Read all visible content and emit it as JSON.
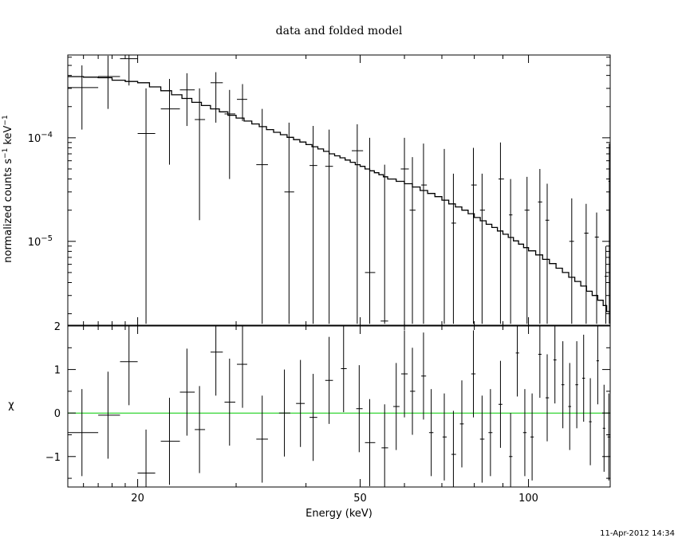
{
  "title": "data and folded model",
  "timestamp": "11-Apr-2012 14:34",
  "chart_data": [
    {
      "type": "scatter",
      "panel": "top",
      "title": "data and folded model",
      "xlabel": "",
      "ylabel_parts": [
        "normalized counts s",
        "−1",
        " keV",
        "−1"
      ],
      "xscale": "log",
      "yscale": "log",
      "xlim": [
        15,
        140
      ],
      "ylim": [
        1.55e-06,
        0.00063
      ],
      "y_ticklabels": [
        {
          "value": 0.0001,
          "base": "10",
          "exp": "−4"
        },
        {
          "value": 1e-05,
          "base": "10",
          "exp": "−5"
        }
      ],
      "data_points": [
        {
          "x": 15.9,
          "xerr": [
            15.0,
            17.0
          ],
          "y": 0.000305,
          "yerr": [
            0.00012,
            0.0005
          ]
        },
        {
          "x": 17.7,
          "xerr": [
            17.0,
            18.6
          ],
          "y": 0.00039,
          "yerr": [
            0.00019,
            0.00062
          ]
        },
        {
          "x": 19.3,
          "xerr": [
            18.6,
            20.0
          ],
          "y": 0.00058,
          "yerr": [
            0.00032,
            0.00063
          ]
        },
        {
          "x": 20.7,
          "xerr": [
            20.0,
            21.5
          ],
          "y": 0.00011,
          "yerr": [
            1.6e-06,
            0.0003
          ]
        },
        {
          "x": 22.8,
          "xerr": [
            22.0,
            23.8
          ],
          "y": 0.00019,
          "yerr": [
            5.5e-05,
            0.00037
          ]
        },
        {
          "x": 24.5,
          "xerr": [
            23.8,
            25.3
          ],
          "y": 0.00029,
          "yerr": [
            0.00013,
            0.00042
          ]
        },
        {
          "x": 25.8,
          "xerr": [
            25.3,
            26.4
          ],
          "y": 0.00015,
          "yerr": [
            1.6e-05,
            0.0003
          ]
        },
        {
          "x": 27.6,
          "xerr": [
            27.0,
            28.4
          ],
          "y": 0.00034,
          "yerr": [
            0.00014,
            0.00043
          ]
        },
        {
          "x": 29.2,
          "xerr": [
            28.6,
            29.9
          ],
          "y": 0.00017,
          "yerr": [
            4e-05,
            0.00029
          ]
        },
        {
          "x": 30.8,
          "xerr": [
            30.1,
            31.4
          ],
          "y": 0.000235,
          "yerr": [
            0.000145,
            0.00033
          ]
        },
        {
          "x": 33.4,
          "xerr": [
            32.6,
            34.2
          ],
          "y": 5.5e-05,
          "yerr": [
            1.6e-06,
            0.00019
          ]
        },
        {
          "x": 37.3,
          "xerr": [
            36.6,
            38.1
          ],
          "y": 3e-05,
          "yerr": [
            1.6e-06,
            0.00014
          ]
        },
        {
          "x": 41.2,
          "xerr": [
            40.6,
            41.9
          ],
          "y": 5.4e-05,
          "yerr": [
            1.6e-06,
            0.00013
          ]
        },
        {
          "x": 44.0,
          "xerr": [
            43.3,
            44.7
          ],
          "y": 5.3e-05,
          "yerr": [
            1.6e-06,
            0.00012
          ]
        },
        {
          "x": 49.4,
          "xerr": [
            48.3,
            50.6
          ],
          "y": 7.5e-05,
          "yerr": [
            1.6e-06,
            0.000135
          ]
        },
        {
          "x": 52.0,
          "xerr": [
            51.0,
            53.2
          ],
          "y": 5e-06,
          "yerr": [
            1.6e-06,
            0.0001
          ]
        },
        {
          "x": 55.3,
          "xerr": [
            54.4,
            56.1
          ],
          "y": 1.7e-06,
          "yerr": [
            1.6e-06,
            5.5e-05
          ]
        },
        {
          "x": 60.0,
          "xerr": [
            59.1,
            61.1
          ],
          "y": 5e-05,
          "yerr": [
            1.5e-06,
            0.0001
          ]
        },
        {
          "x": 62.0,
          "xerr": [
            61.3,
            62.8
          ],
          "y": 2e-05,
          "yerr": [
            1.6e-06,
            6.5e-05
          ]
        },
        {
          "x": 64.9,
          "xerr": [
            64.3,
            65.8
          ],
          "y": 3.5e-05,
          "yerr": [
            1.6e-06,
            8.8e-05
          ]
        },
        {
          "x": 70.7,
          "xerr": [
            70.2,
            71.8
          ],
          "y": 2.5e-05,
          "yerr": [
            1.6e-06,
            7.8e-05
          ]
        },
        {
          "x": 73.4,
          "xerr": [
            72.8,
            74.2
          ],
          "y": 1.5e-05,
          "yerr": [
            1.6e-06,
            4.5e-05
          ]
        },
        {
          "x": 79.7,
          "xerr": [
            79.0,
            80.8
          ],
          "y": 3.5e-05,
          "yerr": [
            1.6e-06,
            8e-05
          ]
        },
        {
          "x": 82.6,
          "xerr": [
            81.9,
            83.6
          ],
          "y": 2e-05,
          "yerr": [
            1.6e-06,
            4.5e-05
          ]
        },
        {
          "x": 89.1,
          "xerr": [
            88.4,
            90.4
          ],
          "y": 4e-05,
          "yerr": [
            1.6e-06,
            9e-05
          ]
        },
        {
          "x": 92.9,
          "xerr": [
            92.3,
            93.6
          ],
          "y": 1.8e-05,
          "yerr": [
            1.6e-06,
            4e-05
          ]
        },
        {
          "x": 99.4,
          "xerr": [
            98.4,
            100.4
          ],
          "y": 2e-05,
          "yerr": [
            1.6e-06,
            4.2e-05
          ]
        },
        {
          "x": 104.8,
          "xerr": [
            104.0,
            105.8
          ],
          "y": 2.4e-05,
          "yerr": [
            1.6e-06,
            5e-05
          ]
        },
        {
          "x": 108.0,
          "xerr": [
            107.2,
            108.9
          ],
          "y": 1.6e-05,
          "yerr": [
            1.6e-06,
            3.6e-05
          ]
        },
        {
          "x": 119.5,
          "xerr": [
            118.3,
            120.6
          ],
          "y": 1e-05,
          "yerr": [
            1.6e-06,
            2.6e-05
          ]
        },
        {
          "x": 126.8,
          "xerr": [
            125.8,
            128.0
          ],
          "y": 1.2e-05,
          "yerr": [
            1.6e-06,
            2.3e-05
          ]
        },
        {
          "x": 132.4,
          "xerr": [
            131.4,
            133.6
          ],
          "y": 1.1e-05,
          "yerr": [
            1.6e-06,
            1.9e-05
          ]
        },
        {
          "x": 137.5,
          "xerr": [
            136.8,
            138.9
          ],
          "y": 4.6e-06,
          "yerr": [
            1.6e-06,
            9e-06
          ]
        },
        {
          "x": 139.5,
          "xerr": [
            139.0,
            140.0
          ],
          "y": 3.8e-05,
          "yerr": [
            1.6e-06,
            8.8e-05
          ]
        }
      ],
      "model_steps": [
        [
          15.0,
          0.00039
        ],
        [
          16.0,
          0.000385
        ],
        [
          17.0,
          0.00038
        ],
        [
          18.0,
          0.00036
        ],
        [
          19.0,
          0.00035
        ],
        [
          20.0,
          0.00034
        ],
        [
          21.0,
          0.00031
        ],
        [
          22.0,
          0.000285
        ],
        [
          23.0,
          0.00026
        ],
        [
          24.0,
          0.00024
        ],
        [
          25.0,
          0.00022
        ],
        [
          26.0,
          0.000205
        ],
        [
          27.0,
          0.00019
        ],
        [
          28.0,
          0.000178
        ],
        [
          29.0,
          0.000165
        ],
        [
          30.0,
          0.000155
        ],
        [
          31.0,
          0.000145
        ],
        [
          32.0,
          0.000136
        ],
        [
          33.0,
          0.000128
        ],
        [
          34.0,
          0.00012
        ],
        [
          35.0,
          0.000113
        ],
        [
          36.0,
          0.000107
        ],
        [
          37.0,
          0.000101
        ],
        [
          38.0,
          9.6e-05
        ],
        [
          39.0,
          9.1e-05
        ],
        [
          40.0,
          8.6e-05
        ],
        [
          41.0,
          8.2e-05
        ],
        [
          42.0,
          7.8e-05
        ],
        [
          43.0,
          7.4e-05
        ],
        [
          44.0,
          7e-05
        ],
        [
          45.0,
          6.7e-05
        ],
        [
          46.0,
          6.4e-05
        ],
        [
          47.0,
          6.1e-05
        ],
        [
          48.0,
          5.8e-05
        ],
        [
          49.0,
          5.5e-05
        ],
        [
          50.0,
          5.3e-05
        ],
        [
          51.0,
          5e-05
        ],
        [
          52.0,
          4.8e-05
        ],
        [
          53.0,
          4.6e-05
        ],
        [
          54.0,
          4.4e-05
        ],
        [
          55.0,
          4.2e-05
        ],
        [
          56.0,
          4e-05
        ],
        [
          58.0,
          3.8e-05
        ],
        [
          60.0,
          3.6e-05
        ],
        [
          62.0,
          3.35e-05
        ],
        [
          64.0,
          3.1e-05
        ],
        [
          66.0,
          2.9e-05
        ],
        [
          68.0,
          2.7e-05
        ],
        [
          70.0,
          2.5e-05
        ],
        [
          72.0,
          2.3e-05
        ],
        [
          74.0,
          2.15e-05
        ],
        [
          76.0,
          2e-05
        ],
        [
          78.0,
          1.85e-05
        ],
        [
          80.0,
          1.7e-05
        ],
        [
          82.0,
          1.58e-05
        ],
        [
          84.0,
          1.46e-05
        ],
        [
          86.0,
          1.36e-05
        ],
        [
          88.0,
          1.26e-05
        ],
        [
          90.0,
          1.17e-05
        ],
        [
          92.0,
          1.09e-05
        ],
        [
          94.0,
          1.01e-05
        ],
        [
          96.0,
          9.4e-06
        ],
        [
          98.0,
          8.7e-06
        ],
        [
          100.0,
          8.1e-06
        ],
        [
          103.0,
          7.4e-06
        ],
        [
          106.0,
          6.7e-06
        ],
        [
          109.0,
          6.1e-06
        ],
        [
          112.0,
          5.5e-06
        ],
        [
          115.0,
          5e-06
        ],
        [
          118.0,
          4.5e-06
        ],
        [
          121.0,
          4.1e-06
        ],
        [
          124.0,
          3.7e-06
        ],
        [
          127.0,
          3.3e-06
        ],
        [
          130.0,
          3e-06
        ],
        [
          133.0,
          2.7e-06
        ],
        [
          136.0,
          2.4e-06
        ],
        [
          138.0,
          2.1e-06
        ],
        [
          140.0,
          1.9e-06
        ]
      ]
    },
    {
      "type": "scatter",
      "panel": "bottom",
      "xlabel": "Energy (keV)",
      "ylabel": "χ",
      "xscale": "log",
      "xlim": [
        15,
        140
      ],
      "ylim": [
        -1.7,
        2.0
      ],
      "x_ticks": [
        20,
        50,
        100
      ],
      "x_ticklabels": [
        "20",
        "50",
        "100"
      ],
      "y_ticks": [
        -1,
        0,
        1,
        2
      ],
      "y_ticklabels": [
        "−1",
        "0",
        "1",
        "2"
      ],
      "reference_line": {
        "y": 0,
        "color": "#00cc00"
      },
      "data_points": [
        {
          "x": 15.9,
          "xerr": [
            15.0,
            17.0
          ],
          "y": -0.45
        },
        {
          "x": 17.7,
          "xerr": [
            17.0,
            18.6
          ],
          "y": -0.05
        },
        {
          "x": 19.3,
          "xerr": [
            18.6,
            20.0
          ],
          "y": 1.18
        },
        {
          "x": 20.7,
          "xerr": [
            20.0,
            21.5
          ],
          "y": -1.38
        },
        {
          "x": 22.8,
          "xerr": [
            22.0,
            23.8
          ],
          "y": -0.65
        },
        {
          "x": 24.5,
          "xerr": [
            23.8,
            25.3
          ],
          "y": 0.48
        },
        {
          "x": 25.8,
          "xerr": [
            25.3,
            26.4
          ],
          "y": -0.38
        },
        {
          "x": 27.6,
          "xerr": [
            27.0,
            28.4
          ],
          "y": 1.4
        },
        {
          "x": 29.2,
          "xerr": [
            28.6,
            29.9
          ],
          "y": 0.25
        },
        {
          "x": 30.8,
          "xerr": [
            30.1,
            31.4
          ],
          "y": 1.12
        },
        {
          "x": 33.4,
          "xerr": [
            32.6,
            34.2
          ],
          "y": -0.6
        },
        {
          "x": 36.6,
          "xerr": [
            35.8,
            37.5
          ],
          "y": 0.0
        },
        {
          "x": 39.1,
          "xerr": [
            38.4,
            39.8
          ],
          "y": 0.22
        },
        {
          "x": 41.2,
          "xerr": [
            40.6,
            41.9
          ],
          "y": -0.1
        },
        {
          "x": 44.0,
          "xerr": [
            43.3,
            44.7
          ],
          "y": 0.75
        },
        {
          "x": 46.7,
          "xerr": [
            46.2,
            47.3
          ],
          "y": 1.02
        },
        {
          "x": 49.8,
          "xerr": [
            49.2,
            50.5
          ],
          "y": 0.1
        },
        {
          "x": 52.0,
          "xerr": [
            51.0,
            53.2
          ],
          "y": -0.68
        },
        {
          "x": 55.3,
          "xerr": [
            54.6,
            56.1
          ],
          "y": -0.8
        },
        {
          "x": 58.0,
          "xerr": [
            57.3,
            58.8
          ],
          "y": 0.15
        },
        {
          "x": 60.0,
          "xerr": [
            59.2,
            60.8
          ],
          "y": 0.9
        },
        {
          "x": 62.0,
          "xerr": [
            61.4,
            62.7
          ],
          "y": 0.5
        },
        {
          "x": 64.9,
          "xerr": [
            64.3,
            65.6
          ],
          "y": 0.85
        },
        {
          "x": 67.0,
          "xerr": [
            66.4,
            67.6
          ],
          "y": -0.45
        },
        {
          "x": 70.7,
          "xerr": [
            70.2,
            71.4
          ],
          "y": -0.55
        },
        {
          "x": 73.4,
          "xerr": [
            72.8,
            74.2
          ],
          "y": -0.95
        },
        {
          "x": 76.0,
          "xerr": [
            75.4,
            76.6
          ],
          "y": -0.25
        },
        {
          "x": 79.7,
          "xerr": [
            79.0,
            80.4
          ],
          "y": 0.9
        },
        {
          "x": 82.6,
          "xerr": [
            81.9,
            83.4
          ],
          "y": -0.6
        },
        {
          "x": 85.5,
          "xerr": [
            84.8,
            86.2
          ],
          "y": -0.45
        },
        {
          "x": 89.1,
          "xerr": [
            88.4,
            89.8
          ],
          "y": 0.2
        },
        {
          "x": 92.9,
          "xerr": [
            92.3,
            93.6
          ],
          "y": -1.0
        },
        {
          "x": 95.5,
          "xerr": [
            94.9,
            96.2
          ],
          "y": 1.38
        },
        {
          "x": 98.5,
          "xerr": [
            97.8,
            99.2
          ],
          "y": -0.45
        },
        {
          "x": 101.5,
          "xerr": [
            100.8,
            102.2
          ],
          "y": -0.55
        },
        {
          "x": 104.8,
          "xerr": [
            104.1,
            105.5
          ],
          "y": 1.35
        },
        {
          "x": 108.0,
          "xerr": [
            107.3,
            108.8
          ],
          "y": 0.35
        },
        {
          "x": 111.5,
          "xerr": [
            110.8,
            112.2
          ],
          "y": 1.22
        },
        {
          "x": 115.2,
          "xerr": [
            114.5,
            115.9
          ],
          "y": 0.65
        },
        {
          "x": 118.5,
          "xerr": [
            117.8,
            119.2
          ],
          "y": 0.15
        },
        {
          "x": 122.0,
          "xerr": [
            121.3,
            122.7
          ],
          "y": 0.65
        },
        {
          "x": 125.5,
          "xerr": [
            124.8,
            126.2
          ],
          "y": 0.8
        },
        {
          "x": 129.0,
          "xerr": [
            128.3,
            129.7
          ],
          "y": -0.2
        },
        {
          "x": 133.0,
          "xerr": [
            132.3,
            133.7
          ],
          "y": 1.2
        },
        {
          "x": 136.5,
          "xerr": [
            135.8,
            137.2
          ],
          "y": -0.35
        },
        {
          "x": 139.2,
          "xerr": [
            138.5,
            140.0
          ],
          "y": -0.55
        }
      ]
    }
  ]
}
